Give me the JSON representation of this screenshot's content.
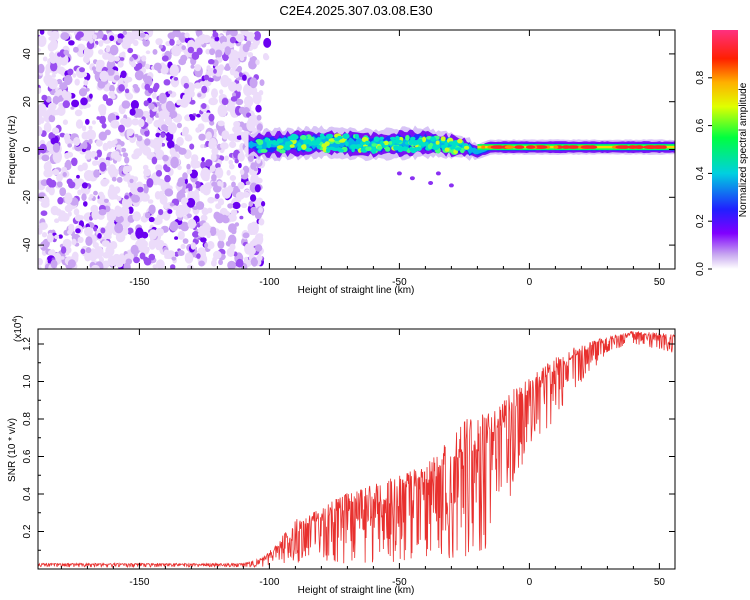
{
  "title": "C2E4.2025.307.03.08.E30",
  "chart_data": [
    {
      "type": "heatmap",
      "xlabel": "Height of straight line (km)",
      "ylabel": "Frequency (Hz)",
      "xlim": [
        -189,
        56
      ],
      "ylim": [
        -50,
        50
      ],
      "xticks": [
        -150,
        -100,
        -50,
        0,
        50
      ],
      "yticks": [
        -40,
        -20,
        0,
        20,
        40
      ],
      "noise_region": [
        -189,
        -103
      ],
      "signal_band": [
        {
          "x": -108,
          "center": 2,
          "halfwidth": 3
        },
        {
          "x": -100,
          "center": 2,
          "halfwidth": 4
        },
        {
          "x": -80,
          "center": 3,
          "halfwidth": 4
        },
        {
          "x": -60,
          "center": 2,
          "halfwidth": 4
        },
        {
          "x": -40,
          "center": 3,
          "halfwidth": 4
        },
        {
          "x": -25,
          "center": 1,
          "halfwidth": 3
        },
        {
          "x": -20,
          "center": -1,
          "halfwidth": 2
        },
        {
          "x": -15,
          "center": 1,
          "halfwidth": 2
        },
        {
          "x": 0,
          "center": 1,
          "halfwidth": 2
        },
        {
          "x": 20,
          "center": 1,
          "halfwidth": 2
        },
        {
          "x": 56,
          "center": 1,
          "halfwidth": 2
        }
      ],
      "colorbar": {
        "label": "Normalized spectral amplitude",
        "range": [
          0,
          1
        ],
        "ticks": [
          0.0,
          0.2,
          0.4,
          0.6,
          0.8
        ]
      }
    },
    {
      "type": "line",
      "xlabel": "Height of straight line (km)",
      "ylabel": "SNR (10 * v/v)",
      "multiplier_label": "(x10",
      "multiplier_exp": "4",
      "multiplier_close": ")",
      "xlim": [
        -189,
        56
      ],
      "ylim": [
        0,
        1.28
      ],
      "xticks": [
        -150,
        -100,
        -50,
        0,
        50
      ],
      "yticks": [
        0.2,
        0.4,
        0.6,
        0.8,
        1.0,
        1.2
      ],
      "line_color": "#e8302e",
      "envelope": [
        {
          "x": -189,
          "low": 0.01,
          "high": 0.03
        },
        {
          "x": -110,
          "low": 0.01,
          "high": 0.03
        },
        {
          "x": -103,
          "low": 0.01,
          "high": 0.06
        },
        {
          "x": -98,
          "low": 0.02,
          "high": 0.12
        },
        {
          "x": -90,
          "low": 0.02,
          "high": 0.27
        },
        {
          "x": -80,
          "low": 0.03,
          "high": 0.32
        },
        {
          "x": -70,
          "low": 0.03,
          "high": 0.42
        },
        {
          "x": -60,
          "low": 0.03,
          "high": 0.45
        },
        {
          "x": -50,
          "low": 0.04,
          "high": 0.5
        },
        {
          "x": -40,
          "low": 0.05,
          "high": 0.56
        },
        {
          "x": -30,
          "low": 0.05,
          "high": 0.7
        },
        {
          "x": -25,
          "low": 0.05,
          "high": 0.8
        },
        {
          "x": -20,
          "low": 0.08,
          "high": 0.82
        },
        {
          "x": -15,
          "low": 0.1,
          "high": 0.86
        },
        {
          "x": -10,
          "low": 0.3,
          "high": 0.92
        },
        {
          "x": 0,
          "low": 0.6,
          "high": 1.02
        },
        {
          "x": 10,
          "low": 0.8,
          "high": 1.13
        },
        {
          "x": 20,
          "low": 1.0,
          "high": 1.2
        },
        {
          "x": 30,
          "low": 1.15,
          "high": 1.24
        },
        {
          "x": 40,
          "low": 1.2,
          "high": 1.27
        },
        {
          "x": 50,
          "low": 1.17,
          "high": 1.26
        },
        {
          "x": 56,
          "low": 1.15,
          "high": 1.25
        }
      ]
    }
  ]
}
